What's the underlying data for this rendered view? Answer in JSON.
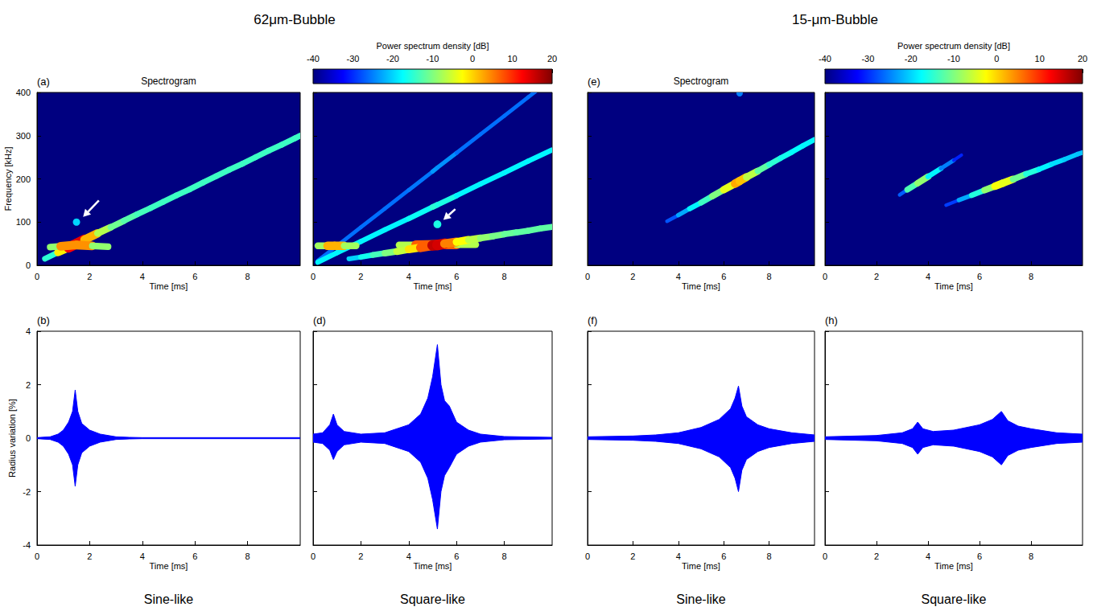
{
  "headings": [
    "62μm-Bubble",
    "15-μm-Bubble"
  ],
  "colorbars": [
    {
      "title": "Power spectrum density [dB]",
      "range": [
        -40,
        20
      ],
      "ticks": [
        -40,
        -30,
        -20,
        -10,
        0,
        10,
        20
      ]
    },
    {
      "title": "Power spectrum density [dB]",
      "range": [
        -40,
        20
      ],
      "ticks": [
        -40,
        -30,
        -20,
        -10,
        0,
        10,
        20
      ]
    }
  ],
  "chart_data": [
    {
      "type": "spectrogram",
      "label": "(a)",
      "title": "Spectrogram",
      "x_label": "Time [ms]",
      "y_label": "Frequency [kHz]",
      "xlim": [
        0,
        10
      ],
      "xticks": [
        0,
        2,
        4,
        6,
        8
      ],
      "ylim": [
        0,
        400
      ],
      "yticks": [
        0,
        100,
        200,
        300,
        400
      ],
      "tracks": [
        {
          "points": [
            [
              0.3,
              15,
              -22
            ],
            [
              0.8,
              30,
              -8
            ],
            [
              1.2,
              41,
              5
            ],
            [
              1.5,
              50,
              20
            ],
            [
              1.8,
              59,
              8
            ],
            [
              2.3,
              74,
              -4
            ],
            [
              2.8,
              88,
              -10
            ],
            [
              3.3,
              103,
              -12
            ],
            [
              3.8,
              118,
              -13
            ],
            [
              4.3,
              132,
              -14
            ],
            [
              4.8,
              147,
              -14
            ],
            [
              5.3,
              162,
              -14
            ],
            [
              5.8,
              176,
              -14
            ],
            [
              6.3,
              191,
              -14
            ],
            [
              6.8,
              206,
              -14
            ],
            [
              7.3,
              221,
              -14
            ],
            [
              7.8,
              235,
              -14
            ],
            [
              8.3,
              250,
              -14
            ],
            [
              8.8,
              265,
              -14
            ],
            [
              9.3,
              279,
              -14
            ],
            [
              9.8,
              294,
              -14
            ],
            [
              10.0,
              300,
              -14
            ]
          ]
        },
        {
          "points": [
            [
              0.5,
              42,
              -14
            ],
            [
              0.9,
              44,
              -4
            ],
            [
              1.5,
              47,
              12
            ],
            [
              2.1,
              45,
              -4
            ],
            [
              2.7,
              43,
              -14
            ]
          ]
        },
        {
          "points": [
            [
              1.5,
              100,
              -20
            ]
          ]
        }
      ],
      "arrows": [
        [
          2.35,
          150,
          1.75,
          112
        ]
      ]
    },
    {
      "type": "spectrogram",
      "x_label": "Time [ms]",
      "xlim": [
        0,
        10
      ],
      "xticks": [
        0,
        2,
        4,
        6,
        8
      ],
      "ylim": [
        0,
        400
      ],
      "yticks": [
        0,
        100,
        200,
        300,
        400
      ],
      "tick_labels": "x",
      "tracks": [
        {
          "points": [
            [
              0.2,
              11,
              -26
            ],
            [
              1,
              45,
              -26
            ],
            [
              2,
              88,
              -26
            ],
            [
              3,
              131,
              -26
            ],
            [
              4,
              174,
              -26
            ],
            [
              5,
              217,
              -25
            ],
            [
              5.2,
              226,
              -22
            ],
            [
              6,
              260,
              -26
            ],
            [
              7,
              303,
              -26
            ],
            [
              8,
              346,
              -26
            ],
            [
              9,
              389,
              -26
            ],
            [
              9.3,
              402,
              -26
            ]
          ]
        },
        {
          "points": [
            [
              0.2,
              7,
              -18
            ],
            [
              1,
              29,
              -18
            ],
            [
              2,
              55,
              -18
            ],
            [
              3,
              82,
              -18
            ],
            [
              4,
              108,
              -18
            ],
            [
              5,
              135,
              -16
            ],
            [
              5.2,
              140,
              -14
            ],
            [
              6,
              161,
              -18
            ],
            [
              7,
              188,
              -18
            ],
            [
              8,
              214,
              -18
            ],
            [
              9,
              241,
              -18
            ],
            [
              10,
              267,
              -18
            ]
          ]
        },
        {
          "points": [
            [
              0.2,
              45,
              -14
            ],
            [
              0.6,
              45,
              -2
            ],
            [
              0.9,
              45,
              6
            ],
            [
              1.3,
              45,
              -2
            ],
            [
              1.8,
              45,
              -14
            ]
          ]
        },
        {
          "points": [
            [
              3.6,
              47,
              -12
            ],
            [
              4.3,
              47,
              -2
            ],
            [
              5.2,
              48,
              16
            ],
            [
              6.0,
              48,
              -2
            ],
            [
              6.8,
              48,
              -12
            ]
          ]
        },
        {
          "points": [
            [
              1.5,
              15,
              -22
            ],
            [
              2.0,
              19,
              -18
            ],
            [
              2.5,
              24,
              -15
            ],
            [
              3.0,
              28,
              -12
            ],
            [
              3.5,
              32,
              -8
            ],
            [
              4.0,
              37,
              -4
            ],
            [
              4.5,
              41,
              2
            ],
            [
              5.0,
              46,
              12
            ],
            [
              5.2,
              47,
              20
            ],
            [
              5.5,
              50,
              10
            ],
            [
              6.0,
              54,
              0
            ],
            [
              6.5,
              59,
              -5
            ],
            [
              7.0,
              63,
              -8
            ],
            [
              7.5,
              67,
              -10
            ],
            [
              8.0,
              72,
              -11
            ],
            [
              8.5,
              76,
              -12
            ],
            [
              9.0,
              80,
              -12
            ],
            [
              9.5,
              85,
              -12
            ],
            [
              10.0,
              89,
              -12
            ]
          ]
        },
        {
          "points": [
            [
              5.2,
              95,
              -16
            ]
          ]
        }
      ],
      "arrows": [
        [
          5.95,
          130,
          5.45,
          105
        ]
      ]
    },
    {
      "type": "spectrogram",
      "label": "(e)",
      "title": "Spectrogram",
      "x_label": "Time [ms]",
      "xlim": [
        0,
        10
      ],
      "xticks": [
        0,
        2,
        4,
        6,
        8
      ],
      "ylim": [
        0,
        400
      ],
      "yticks": [
        0,
        100,
        200,
        300,
        400
      ],
      "tick_labels": "x",
      "tracks": [
        {
          "points": [
            [
              3.5,
              102,
              -30
            ],
            [
              4,
              116,
              -25
            ],
            [
              4.5,
              131,
              -20
            ],
            [
              5,
              145,
              -16
            ],
            [
              5.5,
              160,
              -12
            ],
            [
              6,
              175,
              -8
            ],
            [
              6.5,
              189,
              0
            ],
            [
              6.7,
              195,
              5
            ],
            [
              7,
              204,
              -3
            ],
            [
              7.5,
              218,
              -10
            ],
            [
              8,
              233,
              -14
            ],
            [
              8.5,
              248,
              -16
            ],
            [
              9,
              262,
              -17
            ],
            [
              9.5,
              277,
              -18
            ],
            [
              10,
              291,
              -18
            ]
          ]
        },
        {
          "points": [
            [
              6.7,
              398,
              -25
            ]
          ]
        }
      ]
    },
    {
      "type": "spectrogram",
      "x_label": "Time [ms]",
      "xlim": [
        0,
        10
      ],
      "xticks": [
        0,
        2,
        4,
        6,
        8
      ],
      "ylim": [
        0,
        400
      ],
      "yticks": [
        0,
        100,
        200,
        300,
        400
      ],
      "tick_labels": "x",
      "tracks": [
        {
          "points": [
            [
              2.9,
              163,
              -32
            ],
            [
              3.2,
              175,
              -22
            ],
            [
              3.6,
              190,
              -4
            ],
            [
              4.0,
              205,
              -14
            ],
            [
              4.5,
              224,
              -22
            ],
            [
              5.0,
              243,
              -28
            ],
            [
              5.3,
              255,
              -33
            ]
          ]
        },
        {
          "points": [
            [
              4.7,
              139,
              -32
            ],
            [
              5.2,
              151,
              -26
            ],
            [
              5.7,
              162,
              -19
            ],
            [
              6.2,
              174,
              -12
            ],
            [
              6.6,
              183,
              -6
            ],
            [
              6.9,
              190,
              0
            ],
            [
              7.3,
              199,
              -8
            ],
            [
              7.8,
              211,
              -14
            ],
            [
              8.3,
              222,
              -17
            ],
            [
              8.8,
              234,
              -19
            ],
            [
              9.3,
              245,
              -20
            ],
            [
              9.8,
              257,
              -21
            ],
            [
              10,
              261,
              -21
            ]
          ]
        }
      ]
    },
    {
      "type": "line",
      "label": "(b)",
      "caption": "Sine-like",
      "x_label": "Time [ms]",
      "y_label": "Radius variation [%]",
      "xlim": [
        0,
        10
      ],
      "xticks": [
        0,
        2,
        4,
        6,
        8
      ],
      "ylim": [
        -4,
        4
      ],
      "yticks": [
        -4,
        -2,
        0,
        2,
        4
      ],
      "color": "#0000ff",
      "x": [
        0,
        0.5,
        0.8,
        1.0,
        1.2,
        1.35,
        1.45,
        1.55,
        1.7,
        2.0,
        2.4,
        3.0,
        3.5,
        4.0,
        10.0
      ],
      "series": [
        {
          "values": [
            0.02,
            0.05,
            0.15,
            0.3,
            0.6,
            1.0,
            1.8,
            1.0,
            0.55,
            0.3,
            0.15,
            0.05,
            0.03,
            0.02,
            0.02
          ]
        },
        {
          "values": [
            -0.02,
            -0.05,
            -0.15,
            -0.3,
            -0.6,
            -1.0,
            -1.8,
            -1.0,
            -0.55,
            -0.3,
            -0.15,
            -0.05,
            -0.03,
            -0.02,
            -0.02
          ]
        }
      ]
    },
    {
      "type": "line",
      "label": "(d)",
      "caption": "Square-like",
      "x_label": "Time [ms]",
      "xlim": [
        0,
        10
      ],
      "xticks": [
        0,
        2,
        4,
        6,
        8
      ],
      "ylim": [
        -4,
        4
      ],
      "yticks": [
        -4,
        -2,
        0,
        2,
        4
      ],
      "tick_labels": "x",
      "color": "#0000ff",
      "x": [
        0,
        0.4,
        0.7,
        0.85,
        1.0,
        1.3,
        2.0,
        3.0,
        4.0,
        4.5,
        4.8,
        5.0,
        5.2,
        5.35,
        5.5,
        5.7,
        6.0,
        6.5,
        7.0,
        8.0,
        10.0
      ],
      "series": [
        {
          "values": [
            0.15,
            0.2,
            0.5,
            0.9,
            0.5,
            0.25,
            0.15,
            0.2,
            0.5,
            0.9,
            1.5,
            2.3,
            3.5,
            2.0,
            1.4,
            1.2,
            0.6,
            0.3,
            0.15,
            0.06,
            0.03
          ]
        },
        {
          "values": [
            -0.15,
            -0.2,
            -0.45,
            -0.8,
            -0.5,
            -0.25,
            -0.15,
            -0.2,
            -0.5,
            -0.9,
            -1.5,
            -2.3,
            -3.4,
            -2.0,
            -1.4,
            -1.1,
            -0.6,
            -0.3,
            -0.15,
            -0.06,
            -0.03
          ]
        }
      ]
    },
    {
      "type": "line",
      "label": "(f)",
      "caption": "Sine-like",
      "x_label": "Time [ms]",
      "xlim": [
        0,
        10
      ],
      "xticks": [
        0,
        2,
        4,
        6,
        8
      ],
      "ylim": [
        -4,
        4
      ],
      "yticks": [
        -4,
        -2,
        0,
        2,
        4
      ],
      "tick_labels": "x",
      "color": "#0000ff",
      "x": [
        0,
        2,
        3,
        4,
        5,
        5.8,
        6.3,
        6.5,
        6.65,
        6.8,
        7.0,
        7.5,
        8.0,
        9.0,
        10.0
      ],
      "series": [
        {
          "values": [
            0.05,
            0.08,
            0.12,
            0.2,
            0.4,
            0.7,
            1.1,
            1.5,
            1.95,
            1.2,
            0.8,
            0.5,
            0.35,
            0.2,
            0.12
          ]
        },
        {
          "values": [
            -0.05,
            -0.08,
            -0.12,
            -0.2,
            -0.4,
            -0.7,
            -1.1,
            -1.5,
            -2.0,
            -1.2,
            -0.8,
            -0.5,
            -0.35,
            -0.2,
            -0.12
          ]
        }
      ]
    },
    {
      "type": "line",
      "label": "(h)",
      "caption": "Square-like",
      "x_label": "Time [ms]",
      "xlim": [
        0,
        10
      ],
      "xticks": [
        0,
        2,
        4,
        6,
        8
      ],
      "ylim": [
        -4,
        4
      ],
      "yticks": [
        -4,
        -2,
        0,
        2,
        4
      ],
      "tick_labels": "x",
      "color": "#0000ff",
      "x": [
        0,
        2,
        3,
        3.4,
        3.6,
        3.8,
        4.2,
        5.0,
        6.0,
        6.5,
        6.85,
        7.1,
        7.5,
        8.0,
        9.0,
        10.0
      ],
      "series": [
        {
          "values": [
            0.05,
            0.1,
            0.2,
            0.35,
            0.6,
            0.35,
            0.25,
            0.3,
            0.5,
            0.7,
            1.0,
            0.65,
            0.45,
            0.35,
            0.2,
            0.15
          ]
        },
        {
          "values": [
            -0.05,
            -0.1,
            -0.2,
            -0.35,
            -0.6,
            -0.35,
            -0.25,
            -0.3,
            -0.5,
            -0.7,
            -1.0,
            -0.65,
            -0.45,
            -0.35,
            -0.2,
            -0.15
          ]
        }
      ]
    }
  ]
}
